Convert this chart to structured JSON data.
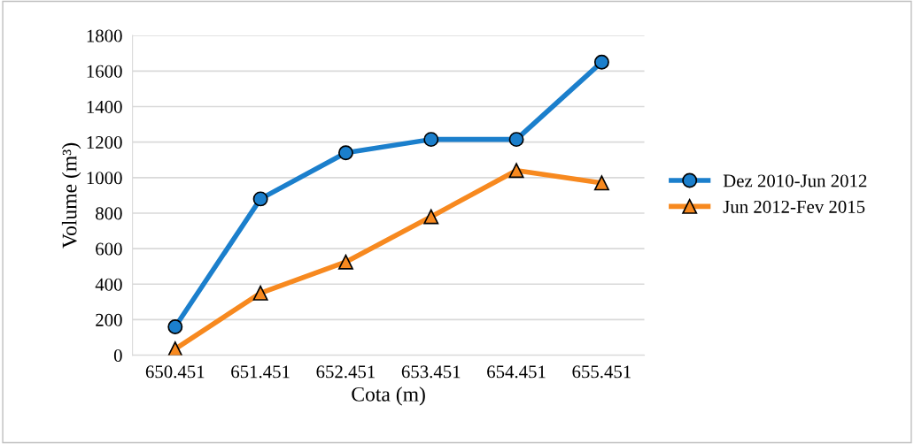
{
  "chart_data": {
    "type": "line",
    "xlabel": "Cota (m)",
    "ylabel": "Volume (m³)",
    "categories": [
      "650.451",
      "651.451",
      "652.451",
      "653.451",
      "654.451",
      "655.451"
    ],
    "series": [
      {
        "name": "Dez 2010-Jun 2012",
        "color": "#1b7fcc",
        "marker": "circle",
        "values": [
          160,
          880,
          1140,
          1215,
          1215,
          1650
        ]
      },
      {
        "name": "Jun 2012-Fev 2015",
        "color": "#f7891f",
        "marker": "triangle",
        "values": [
          35,
          350,
          525,
          780,
          1040,
          970
        ]
      }
    ],
    "ylim": [
      0,
      1800
    ],
    "yticks": [
      0,
      200,
      400,
      600,
      800,
      1000,
      1200,
      1400,
      1600,
      1800
    ],
    "grid": "y",
    "legend": "right",
    "line_style": "solid"
  }
}
